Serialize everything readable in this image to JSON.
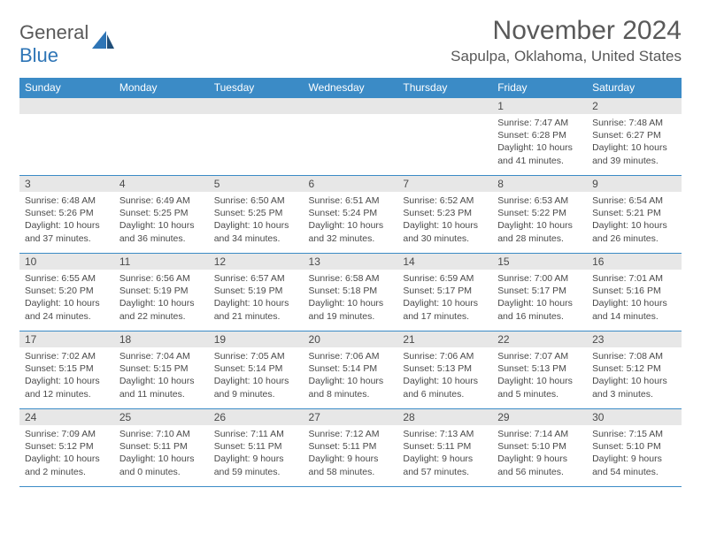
{
  "brand": {
    "part1": "General",
    "part2": "Blue"
  },
  "title": "November 2024",
  "location": "Sapulpa, Oklahoma, United States",
  "colors": {
    "header_bg": "#3b8bc6",
    "header_text": "#ffffff",
    "daynum_bg": "#e7e7e7",
    "border": "#3b8bc6",
    "text": "#4a4a4a",
    "brand_gray": "#595959",
    "brand_blue": "#2e75b6"
  },
  "weekdays": [
    "Sunday",
    "Monday",
    "Tuesday",
    "Wednesday",
    "Thursday",
    "Friday",
    "Saturday"
  ],
  "weeks": [
    [
      null,
      null,
      null,
      null,
      null,
      {
        "n": "1",
        "sr": "7:47 AM",
        "ss": "6:28 PM",
        "dl": "10 hours and 41 minutes."
      },
      {
        "n": "2",
        "sr": "7:48 AM",
        "ss": "6:27 PM",
        "dl": "10 hours and 39 minutes."
      }
    ],
    [
      {
        "n": "3",
        "sr": "6:48 AM",
        "ss": "5:26 PM",
        "dl": "10 hours and 37 minutes."
      },
      {
        "n": "4",
        "sr": "6:49 AM",
        "ss": "5:25 PM",
        "dl": "10 hours and 36 minutes."
      },
      {
        "n": "5",
        "sr": "6:50 AM",
        "ss": "5:25 PM",
        "dl": "10 hours and 34 minutes."
      },
      {
        "n": "6",
        "sr": "6:51 AM",
        "ss": "5:24 PM",
        "dl": "10 hours and 32 minutes."
      },
      {
        "n": "7",
        "sr": "6:52 AM",
        "ss": "5:23 PM",
        "dl": "10 hours and 30 minutes."
      },
      {
        "n": "8",
        "sr": "6:53 AM",
        "ss": "5:22 PM",
        "dl": "10 hours and 28 minutes."
      },
      {
        "n": "9",
        "sr": "6:54 AM",
        "ss": "5:21 PM",
        "dl": "10 hours and 26 minutes."
      }
    ],
    [
      {
        "n": "10",
        "sr": "6:55 AM",
        "ss": "5:20 PM",
        "dl": "10 hours and 24 minutes."
      },
      {
        "n": "11",
        "sr": "6:56 AM",
        "ss": "5:19 PM",
        "dl": "10 hours and 22 minutes."
      },
      {
        "n": "12",
        "sr": "6:57 AM",
        "ss": "5:19 PM",
        "dl": "10 hours and 21 minutes."
      },
      {
        "n": "13",
        "sr": "6:58 AM",
        "ss": "5:18 PM",
        "dl": "10 hours and 19 minutes."
      },
      {
        "n": "14",
        "sr": "6:59 AM",
        "ss": "5:17 PM",
        "dl": "10 hours and 17 minutes."
      },
      {
        "n": "15",
        "sr": "7:00 AM",
        "ss": "5:17 PM",
        "dl": "10 hours and 16 minutes."
      },
      {
        "n": "16",
        "sr": "7:01 AM",
        "ss": "5:16 PM",
        "dl": "10 hours and 14 minutes."
      }
    ],
    [
      {
        "n": "17",
        "sr": "7:02 AM",
        "ss": "5:15 PM",
        "dl": "10 hours and 12 minutes."
      },
      {
        "n": "18",
        "sr": "7:04 AM",
        "ss": "5:15 PM",
        "dl": "10 hours and 11 minutes."
      },
      {
        "n": "19",
        "sr": "7:05 AM",
        "ss": "5:14 PM",
        "dl": "10 hours and 9 minutes."
      },
      {
        "n": "20",
        "sr": "7:06 AM",
        "ss": "5:14 PM",
        "dl": "10 hours and 8 minutes."
      },
      {
        "n": "21",
        "sr": "7:06 AM",
        "ss": "5:13 PM",
        "dl": "10 hours and 6 minutes."
      },
      {
        "n": "22",
        "sr": "7:07 AM",
        "ss": "5:13 PM",
        "dl": "10 hours and 5 minutes."
      },
      {
        "n": "23",
        "sr": "7:08 AM",
        "ss": "5:12 PM",
        "dl": "10 hours and 3 minutes."
      }
    ],
    [
      {
        "n": "24",
        "sr": "7:09 AM",
        "ss": "5:12 PM",
        "dl": "10 hours and 2 minutes."
      },
      {
        "n": "25",
        "sr": "7:10 AM",
        "ss": "5:11 PM",
        "dl": "10 hours and 0 minutes."
      },
      {
        "n": "26",
        "sr": "7:11 AM",
        "ss": "5:11 PM",
        "dl": "9 hours and 59 minutes."
      },
      {
        "n": "27",
        "sr": "7:12 AM",
        "ss": "5:11 PM",
        "dl": "9 hours and 58 minutes."
      },
      {
        "n": "28",
        "sr": "7:13 AM",
        "ss": "5:11 PM",
        "dl": "9 hours and 57 minutes."
      },
      {
        "n": "29",
        "sr": "7:14 AM",
        "ss": "5:10 PM",
        "dl": "9 hours and 56 minutes."
      },
      {
        "n": "30",
        "sr": "7:15 AM",
        "ss": "5:10 PM",
        "dl": "9 hours and 54 minutes."
      }
    ]
  ],
  "labels": {
    "sunrise": "Sunrise: ",
    "sunset": "Sunset: ",
    "daylight": "Daylight: "
  }
}
